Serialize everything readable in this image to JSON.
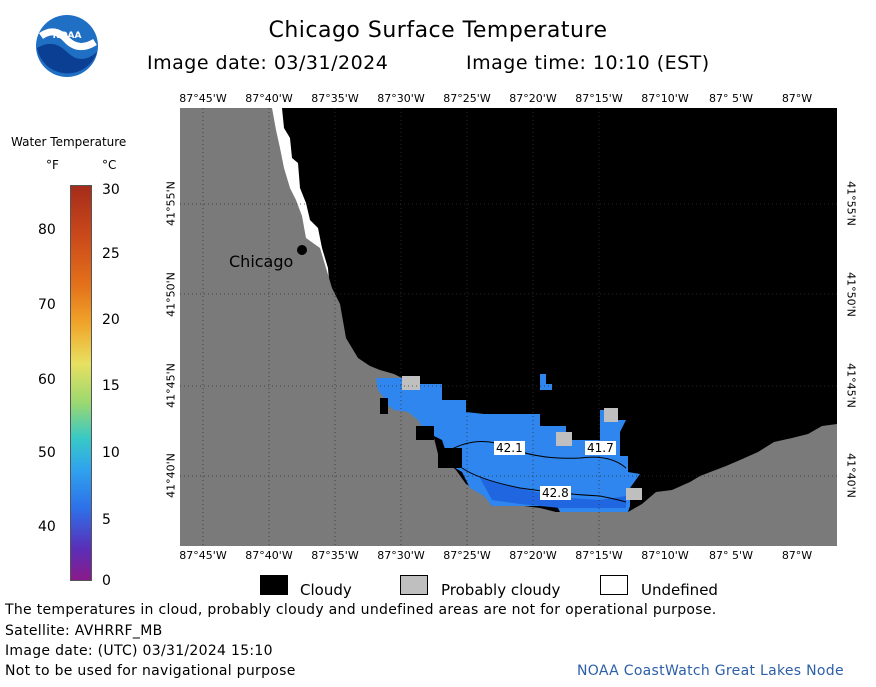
{
  "header": {
    "title": "Chicago Surface Temperature",
    "image_date": "Image date: 03/31/2024",
    "image_time": "Image time: 10:10 (EST)"
  },
  "logo": {
    "text": "NOAA"
  },
  "axes": {
    "lon_ticks": [
      "87°45'W",
      "87°40'W",
      "87°35'W",
      "87°30'W",
      "87°25'W",
      "87°20'W",
      "87°15'W",
      "87°10'W",
      "87° 5'W",
      "87°W"
    ],
    "lat_ticks": [
      "41°55'N",
      "41°50'N",
      "41°45'N",
      "41°40'N"
    ]
  },
  "legend": {
    "title": "Water Temperature",
    "unit_f": "°F",
    "unit_c": "°C",
    "f_ticks": [
      "80",
      "70",
      "60",
      "50",
      "40"
    ],
    "c_ticks": [
      "30",
      "25",
      "20",
      "15",
      "10",
      "5",
      "0"
    ]
  },
  "map": {
    "city_label": "Chicago",
    "isotherms": [
      "42.1",
      "41.7",
      "42.8"
    ],
    "colors": {
      "land": "#7a7a7a",
      "cloudy": "#000000",
      "water_cold": "#2f86ef",
      "water_mid": "#1f66e0",
      "probably_cloudy": "#bfbfbf",
      "undefined": "#ffffff"
    }
  },
  "key": {
    "cloudy": "Cloudy",
    "probably_cloudy": "Probably cloudy",
    "undefined": "Undefined"
  },
  "footer": {
    "note": "The temperatures in cloud, probably cloudy and undefined areas are not for operational purpose.",
    "satellite": "Satellite: AVHRRF_MB",
    "utc_date": "Image date: (UTC) 03/31/2024  15:10",
    "nav_warning": "Not to be used for navigational purpose",
    "node": "NOAA CoastWatch Great Lakes Node"
  }
}
